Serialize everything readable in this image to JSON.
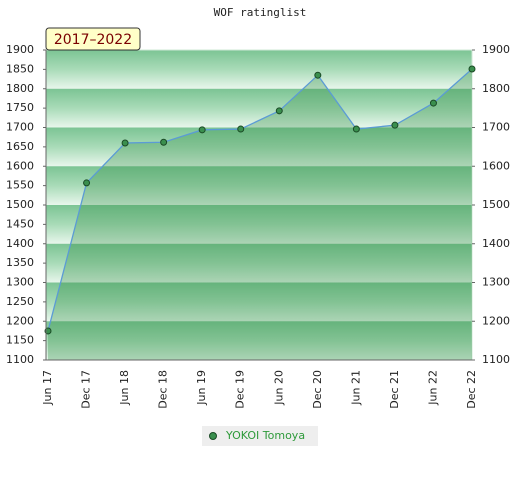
{
  "chart_data": {
    "type": "line",
    "title": "WOF ratinglist",
    "annotation": "2017–2022",
    "categories": [
      "Jun 17",
      "Dec 17",
      "Jun 18",
      "Dec 18",
      "Jun 19",
      "Dec 19",
      "Jun 20",
      "Dec 20",
      "Jun 21",
      "Dec 21",
      "Jun 22",
      "Dec 22"
    ],
    "series": [
      {
        "name": "YOKOI Tomoya",
        "color": "#5b9bd5",
        "values": [
          1175,
          1557,
          1660,
          1662,
          1694,
          1696,
          1743,
          1835,
          1696,
          1706,
          1763,
          1851
        ]
      }
    ],
    "ylim": [
      1100,
      1900
    ],
    "yticks": [
      1100,
      1150,
      1200,
      1250,
      1300,
      1350,
      1400,
      1450,
      1500,
      1550,
      1600,
      1650,
      1700,
      1750,
      1800,
      1850,
      1900
    ],
    "y2lim": [
      1100,
      1900
    ],
    "y2ticks": [
      1100,
      1200,
      1300,
      1400,
      1500,
      1600,
      1700,
      1800,
      1900
    ]
  }
}
